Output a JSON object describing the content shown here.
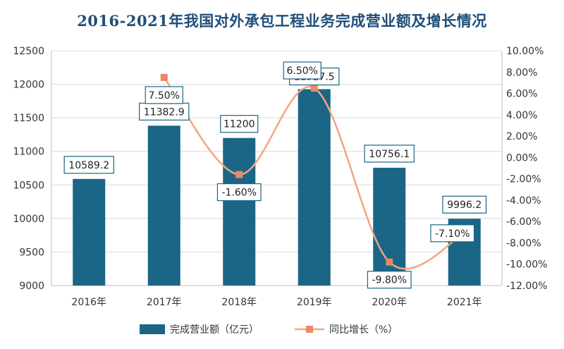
{
  "chart_data": {
    "type": "bar",
    "title": "2016-2021年我国对外承包工程业务完成营业额及增长情况",
    "categories": [
      "2016年",
      "2017年",
      "2018年",
      "2019年",
      "2020年",
      "2021年"
    ],
    "series": [
      {
        "name": "完成营业额（亿元）",
        "type": "bar",
        "axis": "left",
        "values": [
          10589.2,
          11382.9,
          11200,
          11927.5,
          10756.1,
          9996.2
        ],
        "labels": [
          "10589.2",
          "11382.9",
          "11200",
          "11927.5",
          "10756.1",
          "9996.2"
        ]
      },
      {
        "name": "同比增长（%）",
        "type": "line",
        "axis": "right",
        "values": [
          7.5,
          -1.6,
          6.5,
          -9.8,
          -7.1
        ],
        "x": [
          "2017年",
          "2018年",
          "2019年",
          "2020年",
          "2021年"
        ],
        "labels": [
          "7.50%",
          "-1.60%",
          "6.50%",
          "-9.80%",
          "-7.10%"
        ]
      }
    ],
    "left_axis": {
      "ylim": [
        9000,
        12500
      ],
      "ticks": [
        "9000",
        "9500",
        "10000",
        "10500",
        "11000",
        "11500",
        "12000",
        "12500"
      ]
    },
    "right_axis": {
      "ylim": [
        -12,
        10
      ],
      "ticks": [
        "-12.00%",
        "-10.00%",
        "-8.00%",
        "-6.00%",
        "-4.00%",
        "-2.00%",
        "0.00%",
        "2.00%",
        "4.00%",
        "6.00%",
        "8.00%",
        "10.00%"
      ]
    },
    "grid": true,
    "legend": "bottom",
    "colors": {
      "bar": "#1b6586",
      "line": "#f4a582",
      "marker": "#e8896a",
      "title": "#1f4e79"
    }
  }
}
